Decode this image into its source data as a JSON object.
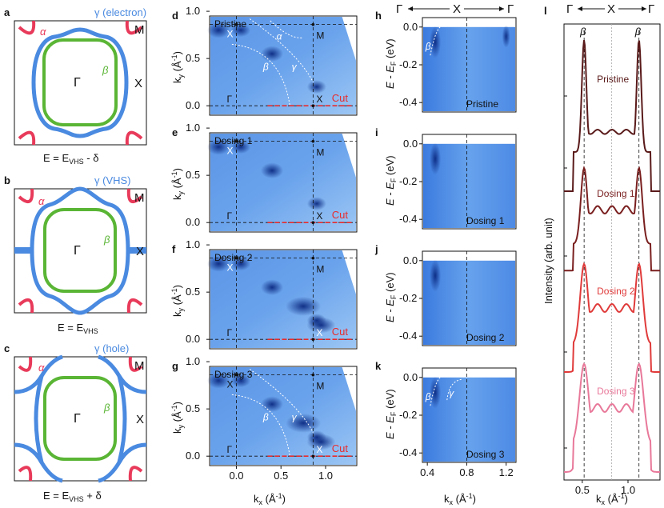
{
  "figure": {
    "panel_letters": [
      "a",
      "b",
      "c",
      "d",
      "e",
      "f",
      "g",
      "h",
      "i",
      "j",
      "k",
      "l"
    ],
    "fermi_surface_panels": [
      {
        "id": "a",
        "gamma_label": "γ (electron)",
        "equation": "E = E_VHS - δ",
        "eq_main": "E = E",
        "eq_sub": "VHS",
        "eq_tail": " - δ"
      },
      {
        "id": "b",
        "gamma_label": "γ (VHS)",
        "equation": "E = E_VHS",
        "eq_main": "E = E",
        "eq_sub": "VHS",
        "eq_tail": ""
      },
      {
        "id": "c",
        "gamma_label": "γ (hole)",
        "equation": "E = E_VHS + δ",
        "eq_main": "E = E",
        "eq_sub": "VHS",
        "eq_tail": " + δ"
      }
    ],
    "fs_labels": {
      "alpha": "α",
      "beta": "β",
      "Gamma": "Γ",
      "M": "M",
      "X": "X"
    },
    "arpes_map_panels": [
      {
        "id": "d",
        "label": "Pristine"
      },
      {
        "id": "e",
        "label": "Dosing 1"
      },
      {
        "id": "f",
        "label": "Dosing 2"
      },
      {
        "id": "g",
        "label": "Dosing 3"
      }
    ],
    "map_axes": {
      "ylabel_main": "k",
      "ylabel_sub": "y",
      "ylabel_unit": " (Å",
      "xlabel_main": "k",
      "xlabel_sub": "x",
      "xlabel_unit": " (Å",
      "ytick_labels": [
        "0.0",
        "0.5",
        "1.0"
      ],
      "xtick_labels": [
        "0.0",
        "0.5",
        "1.0"
      ],
      "cut_label": "Cut",
      "point_labels": {
        "X": "X",
        "M": "M",
        "Gamma": "Γ"
      },
      "band_labels": {
        "alpha": "α",
        "beta": "β",
        "gamma": "γ"
      }
    },
    "dispersion_panels": [
      {
        "id": "h",
        "label": "Pristine"
      },
      {
        "id": "i",
        "label": "Dosing 1"
      },
      {
        "id": "j",
        "label": "Dosing 2"
      },
      {
        "id": "k",
        "label": "Dosing 3"
      }
    ],
    "dispersion_axes": {
      "ylabel_main": "E - E",
      "ylabel_sub": "F",
      "ylabel_unit": " (eV)",
      "ytick_labels": [
        "0.0",
        "-0.2",
        "-0.4"
      ],
      "xtick_labels": [
        "0.4",
        "0.8",
        "1.2"
      ],
      "xlabel_main": "k",
      "xlabel_sub": "x",
      "xlabel_unit": " (Å",
      "top_path": [
        "Γ",
        "X",
        "Γ"
      ]
    },
    "edc_panel": {
      "id": "l",
      "ylabel": "Intensity (arb. unit)",
      "xtick_labels": [
        "0.5",
        "1.0"
      ],
      "top_path": [
        "Γ",
        "X",
        "Γ"
      ],
      "peak_label": "β",
      "curves": [
        {
          "label": "Pristine",
          "color": "#5a1a1a"
        },
        {
          "label": "Dosing 1",
          "color": "#7a1f1f"
        },
        {
          "label": "Dosing 2",
          "color": "#e03a3a"
        },
        {
          "label": "Dosing 3",
          "color": "#e8789a"
        }
      ]
    },
    "colors": {
      "alpha": "#e83a5a",
      "gamma": "#4a8ae0",
      "beta": "#5ab535",
      "cut": "#e82c2c",
      "map_low": "#f2f7fd",
      "map_high": "#0a2a80"
    }
  }
}
